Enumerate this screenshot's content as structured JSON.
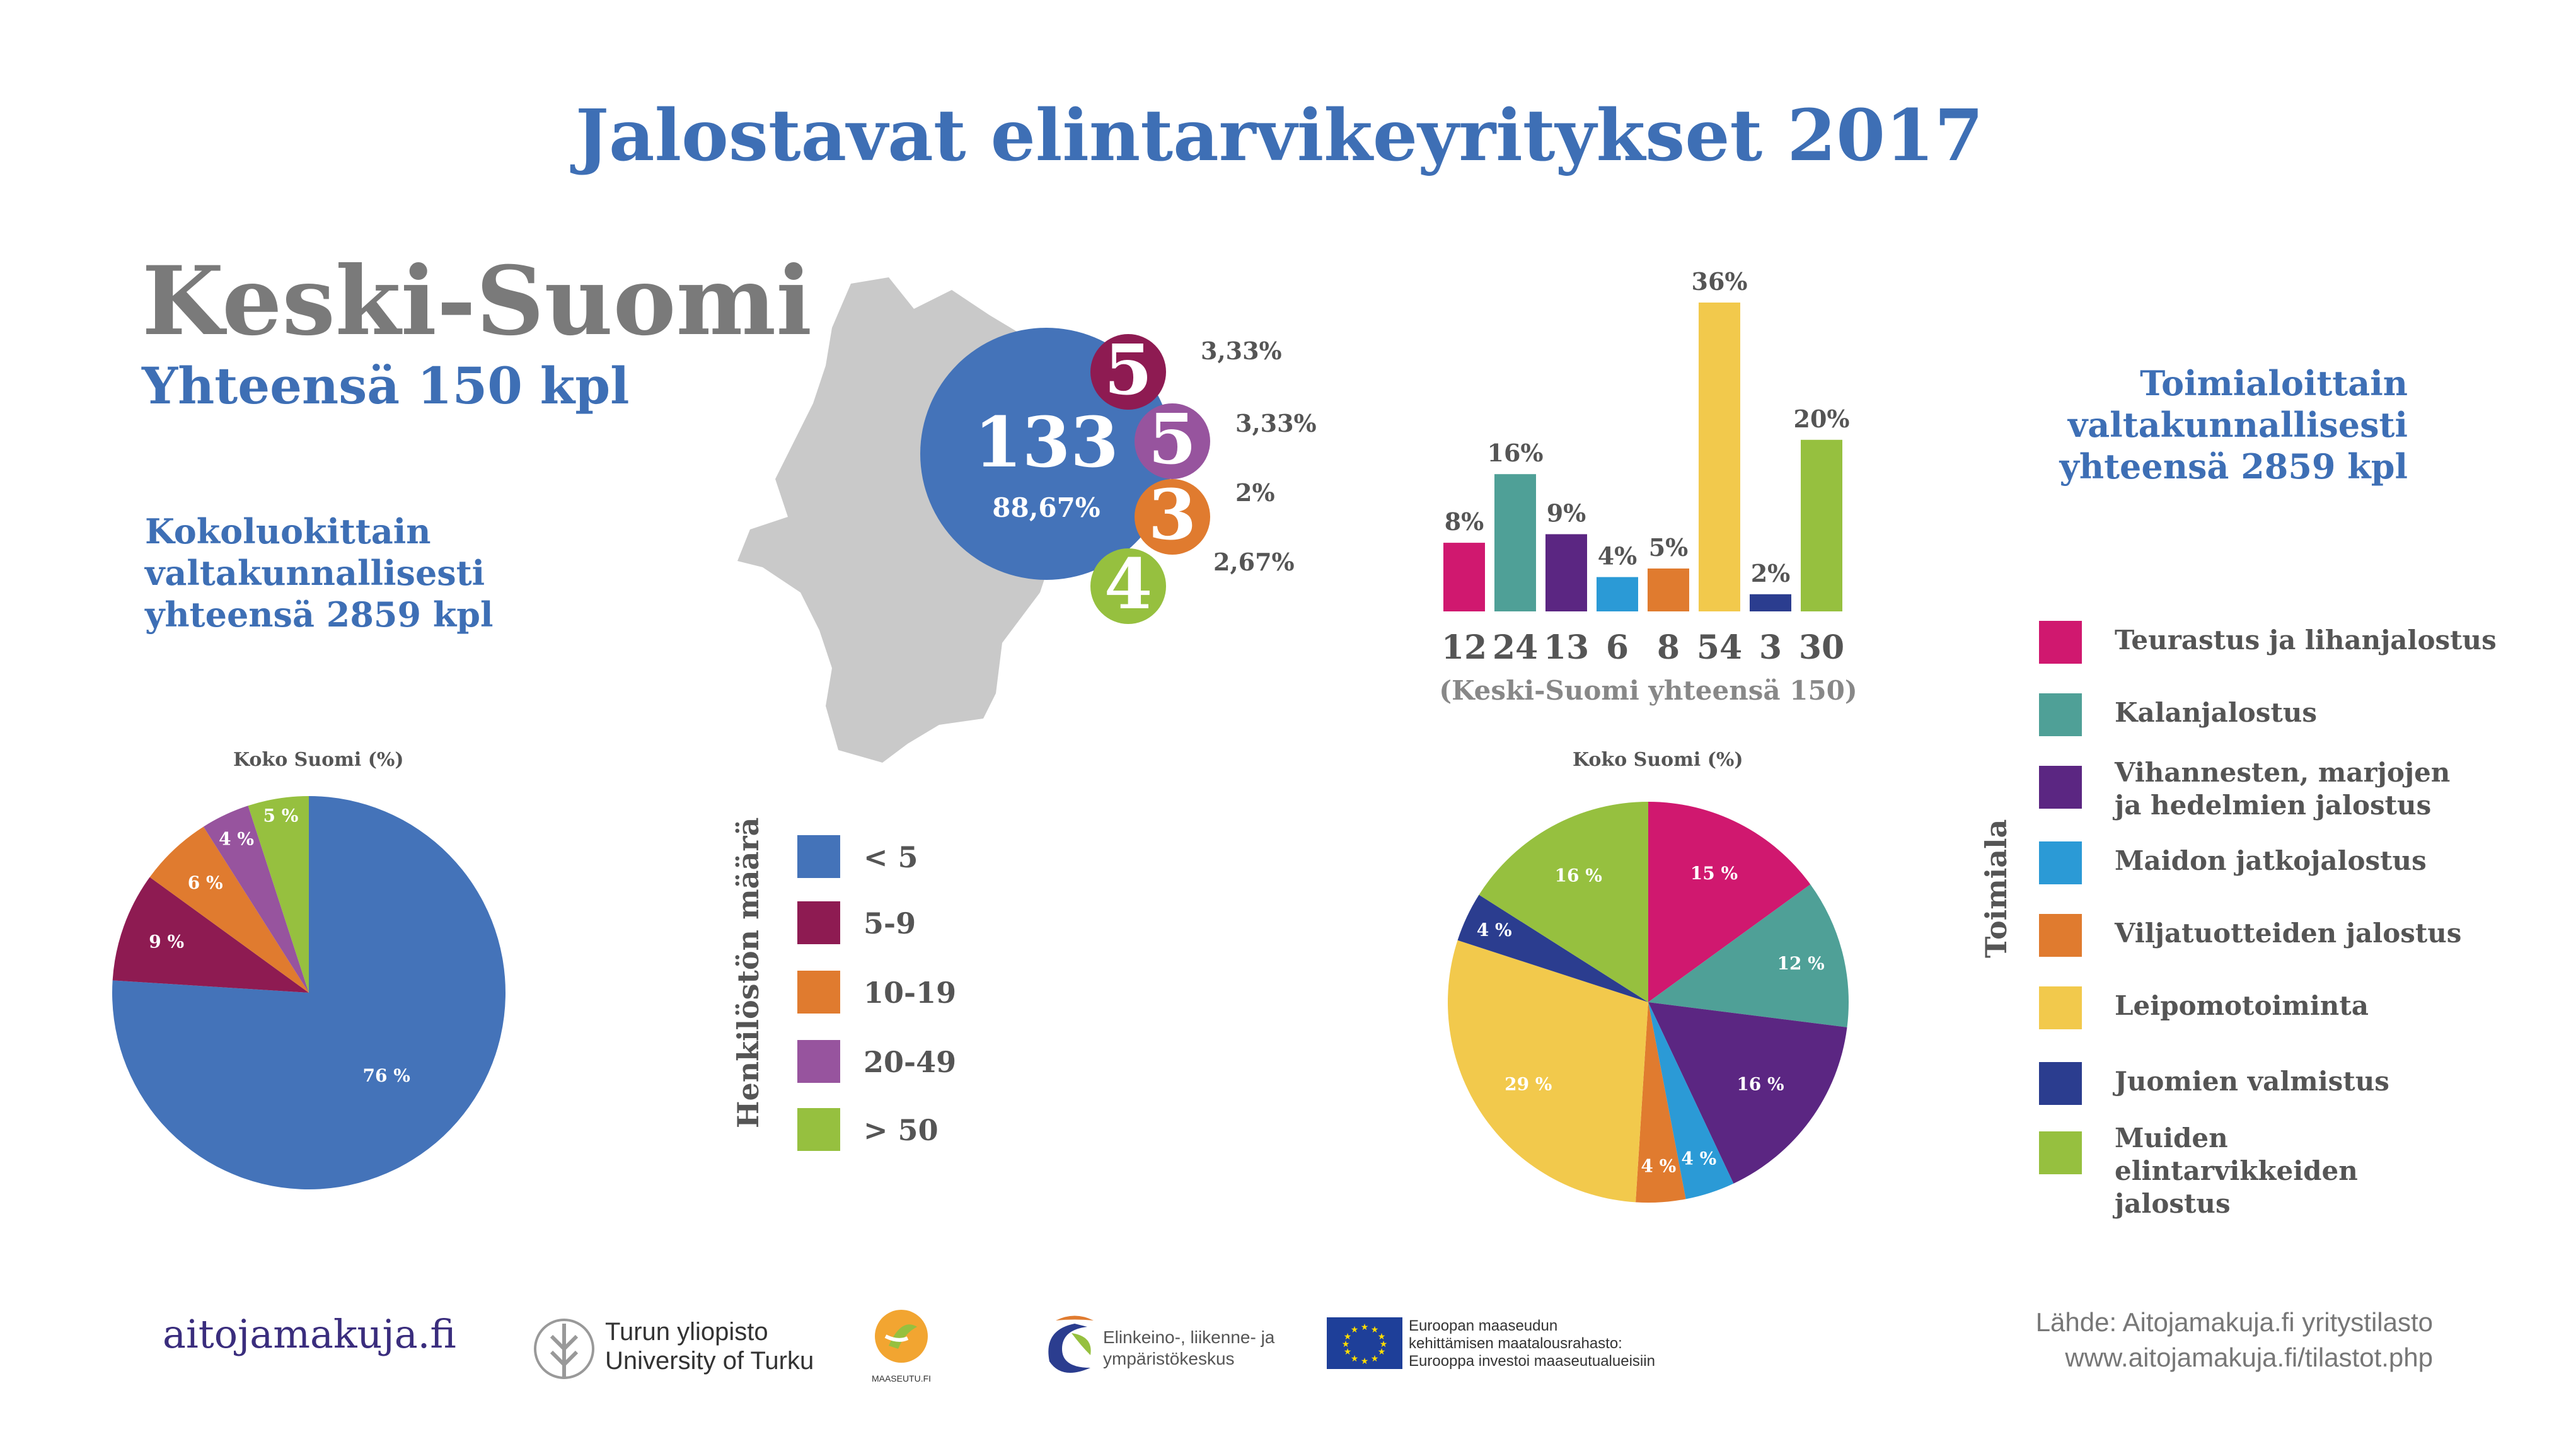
{
  "title": "Jalostavat elintarvikeyritykset  2017",
  "region": "Keski-Suomi",
  "total": "Yhteensä 150 kpl",
  "size_subhead": [
    "Kokoluokittain",
    "valtakunnallisesti",
    "yhteensä 2859 kpl"
  ],
  "industry_subhead": [
    "Toimialoittain",
    "valtakunnallisesti",
    "yhteensä 2859 kpl"
  ],
  "koko_suomi_label": "Koko Suomi (%)",
  "staff_axis_label": "Henkilöstön määrä",
  "industry_axis_label": "Toimiala",
  "colors": {
    "lt5": "#4473B9",
    "c5_9": "#8E1B52",
    "c10_19": "#E07B2F",
    "c20_49": "#97549E",
    "gt50": "#96C03F",
    "teurastus": "#D0186F",
    "kala": "#4FA097",
    "vihannes": "#5B2682",
    "maito": "#2B9AD6",
    "vilja": "#E07B2F",
    "leipomo": "#F2C94C",
    "juoma": "#2B3D8F",
    "muut": "#96C03F",
    "map": "#C9C9C9"
  },
  "staff_legend": [
    {
      "label": "< 5",
      "color": "#4473B9"
    },
    {
      "label": "5-9",
      "color": "#8E1B52"
    },
    {
      "label": "10-19",
      "color": "#E07B2F"
    },
    {
      "label": "20-49",
      "color": "#97549E"
    },
    {
      "label": "> 50",
      "color": "#96C03F"
    }
  ],
  "industry_legend": [
    {
      "label": "Teurastus ja lihanjalostus",
      "color": "#D0186F"
    },
    {
      "label": "Kalanjalostus",
      "color": "#4FA097"
    },
    {
      "label": "Vihannesten, marjojen ja hedelmien jalostus",
      "color": "#5B2682"
    },
    {
      "label": "Maidon jatkojalostus",
      "color": "#2B9AD6"
    },
    {
      "label": "Viljatuotteiden jalostus",
      "color": "#E07B2F"
    },
    {
      "label": "Leipomotoiminta",
      "color": "#F2C94C"
    },
    {
      "label": "Juomien valmistus",
      "color": "#2B3D8F"
    },
    {
      "label": "Muiden elintarvikkeiden jalostus",
      "color": "#96C03F"
    }
  ],
  "footer": {
    "site": "aitojamakuja.fi",
    "logos": [
      "Turun yliopisto",
      "University of Turku",
      "MAASEUTU.FI",
      "Elinkeino-, liikenne- ja",
      "ympäristökeskus",
      "Euroopan maaseudun",
      "kehittämisen maatalousrahasto:",
      "Eurooppa investoi maaseutualueisiin"
    ],
    "source": [
      "Lähde: Aitojamakuja.fi yritystilasto",
      "www.aitojamakuja.fi/tilastot.php"
    ]
  },
  "chart_data": [
    {
      "id": "bubbles",
      "type": "bubble",
      "description_units": "Keski-Suomi companies by staff size",
      "categories": [
        "< 5",
        "5-9",
        "20-49",
        "10-19",
        "> 50"
      ],
      "values": [
        133,
        5,
        5,
        3,
        4
      ],
      "labels": [
        "88,67%",
        "3,33%",
        "3,33%",
        "2%",
        "2,67%"
      ],
      "colors": [
        "#4473B9",
        "#8E1B52",
        "#97549E",
        "#E07B2F",
        "#96C03F"
      ]
    },
    {
      "id": "size-pie",
      "type": "pie",
      "title": "Koko Suomi (%)",
      "categories": [
        "< 5",
        "5-9",
        "10-19",
        "20-49",
        "> 50"
      ],
      "values": [
        76,
        9,
        6,
        4,
        5
      ],
      "labels": [
        "76 %",
        "9 %",
        "6 %",
        "4 %",
        "5 %"
      ],
      "colors": [
        "#4473B9",
        "#8E1B52",
        "#E07B2F",
        "#97549E",
        "#96C03F"
      ]
    },
    {
      "id": "industry-bar",
      "type": "bar",
      "xlabel": "(Keski-Suomi yhteensä 150)",
      "categories": [
        "12",
        "24",
        "13",
        "6",
        "8",
        "54",
        "3",
        "30"
      ],
      "values": [
        8,
        16,
        9,
        4,
        5,
        36,
        2,
        20
      ],
      "labels": [
        "8%",
        "16%",
        "9%",
        "4%",
        "5%",
        "36%",
        "2%",
        "20%"
      ],
      "colors": [
        "#D0186F",
        "#4FA097",
        "#5B2682",
        "#2B9AD6",
        "#E07B2F",
        "#F2C94C",
        "#2B3D8F",
        "#96C03F"
      ],
      "ylim": [
        0,
        36
      ]
    },
    {
      "id": "industry-pie",
      "type": "pie",
      "title": "Koko Suomi (%)",
      "categories": [
        "Teurastus ja lihanjalostus",
        "Kalanjalostus",
        "Vihannesten, marjojen ja hedelmien jalostus",
        "Maidon jatkojalostus",
        "Viljatuotteiden jalostus",
        "Leipomotoiminta",
        "Juomien valmistus",
        "Muiden elintarvikkeiden jalostus"
      ],
      "values": [
        15,
        12,
        16,
        4,
        4,
        29,
        4,
        16
      ],
      "labels": [
        "15 %",
        "12 %",
        "16 %",
        "4 %",
        "4 %",
        "29 %",
        "4 %",
        "16 %"
      ],
      "colors": [
        "#D0186F",
        "#4FA097",
        "#5B2682",
        "#2B9AD6",
        "#E07B2F",
        "#F2C94C",
        "#2B3D8F",
        "#96C03F"
      ]
    }
  ]
}
